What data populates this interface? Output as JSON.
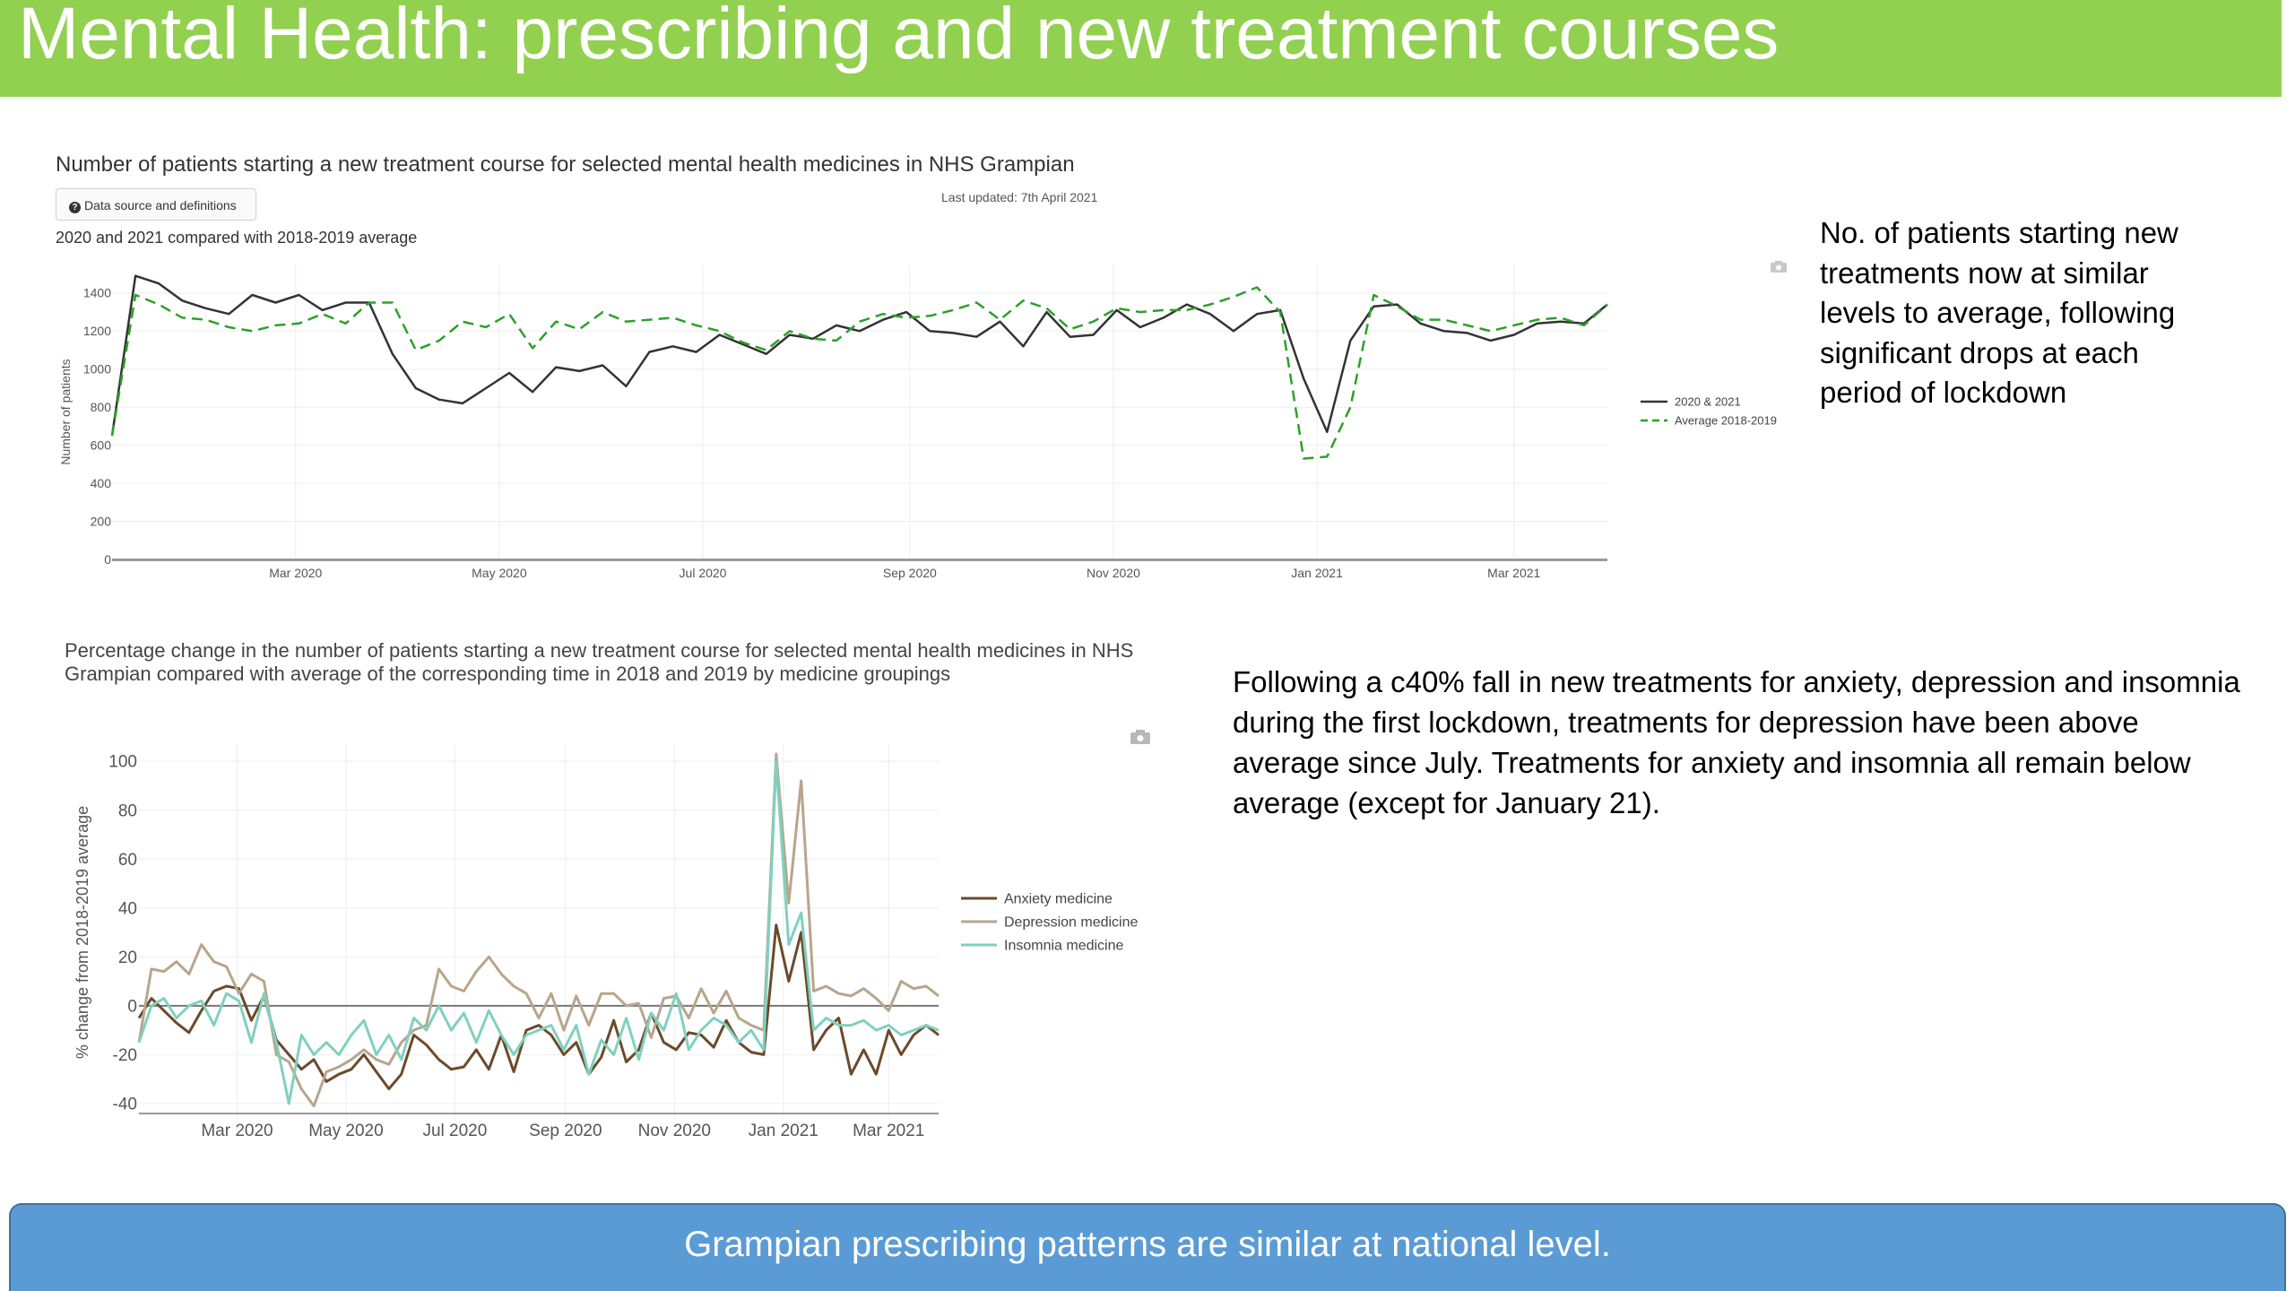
{
  "slide": {
    "title": "Mental Health: prescribing and new treatment courses",
    "note1": "No. of patients starting new treatments now at similar levels to average, following significant drops at each period of lockdown",
    "note2": "Following a c40% fall in new treatments for anxiety, depression and insomnia during the first lockdown, treatments for depression have been above average since July.  Treatments for anxiety and insomnia all remain below average (except for January 21).",
    "footer": "Grampian prescribing patterns are similar at national level.",
    "data_source_button": "Data source and definitions",
    "last_updated": "Last updated: 7th April 2021",
    "colors": {
      "title_bar": "#92d050",
      "footer": "#5b9bd5"
    }
  },
  "chart_data": [
    {
      "type": "line",
      "title": "Number of patients starting a new treatment course for selected mental health medicines in NHS Grampian",
      "subtitle": "2020 and 2021 compared with 2018-2019 average",
      "ylabel": "Number of patients",
      "ylim": [
        0,
        1550
      ],
      "yticks": [
        0,
        200,
        400,
        600,
        800,
        1000,
        1200,
        1400
      ],
      "xticks": [
        "Mar 2020",
        "May 2020",
        "Jul 2020",
        "Sep 2020",
        "Nov 2020",
        "Jan 2021",
        "Mar 2021"
      ],
      "x_start": "2020-01-06",
      "x_step_days": 7,
      "legend_position": "right",
      "series": [
        {
          "name": "2020 & 2021",
          "color": "#333333",
          "dash": "solid",
          "values": [
            650,
            1490,
            1450,
            1360,
            1320,
            1290,
            1390,
            1350,
            1390,
            1310,
            1350,
            1350,
            1080,
            900,
            840,
            820,
            900,
            980,
            880,
            1010,
            990,
            1020,
            910,
            1090,
            1120,
            1090,
            1180,
            1130,
            1080,
            1180,
            1160,
            1230,
            1200,
            1260,
            1300,
            1200,
            1190,
            1170,
            1250,
            1120,
            1300,
            1170,
            1180,
            1310,
            1220,
            1270,
            1340,
            1290,
            1200,
            1290,
            1310,
            950,
            670,
            1150,
            1330,
            1340,
            1240,
            1200,
            1190,
            1150,
            1180,
            1240,
            1250,
            1240,
            1340
          ]
        },
        {
          "name": "Average 2018-2019",
          "color": "#2ca02c",
          "dash": "dashed",
          "values": [
            650,
            1390,
            1340,
            1270,
            1260,
            1220,
            1200,
            1230,
            1240,
            1290,
            1240,
            1350,
            1350,
            1100,
            1150,
            1250,
            1220,
            1290,
            1110,
            1250,
            1210,
            1300,
            1250,
            1260,
            1270,
            1230,
            1200,
            1140,
            1100,
            1200,
            1160,
            1150,
            1250,
            1290,
            1270,
            1280,
            1310,
            1350,
            1260,
            1360,
            1320,
            1210,
            1250,
            1320,
            1300,
            1310,
            1310,
            1340,
            1380,
            1430,
            1300,
            530,
            540,
            800,
            1390,
            1330,
            1260,
            1260,
            1230,
            1200,
            1230,
            1260,
            1270,
            1230,
            1340
          ]
        }
      ]
    },
    {
      "type": "line",
      "title": "Percentage change in the number of patients starting a new treatment course for selected mental health medicines in NHS Grampian compared with average of the corresponding time in 2018 and 2019 by medicine groupings",
      "ylabel": "% change from 2018-2019 average",
      "ylim": [
        -47,
        107
      ],
      "yticks": [
        -40,
        -20,
        0,
        20,
        40,
        60,
        80,
        100
      ],
      "xticks": [
        "Mar 2020",
        "May 2020",
        "Jul 2020",
        "Sep 2020",
        "Nov 2020",
        "Jan 2021",
        "Mar 2021"
      ],
      "x_start": "2020-01-06",
      "x_step_days": 7,
      "legend_position": "right",
      "series": [
        {
          "name": "Anxiety medicine",
          "color": "#6b4a2b",
          "values": [
            -5,
            3,
            -2,
            -7,
            -11,
            -2,
            6,
            8,
            7,
            -6,
            4,
            -14,
            -20,
            -26,
            -22,
            -31,
            -28,
            -26,
            -20,
            -27,
            -34,
            -28,
            -12,
            -16,
            -22,
            -26,
            -25,
            -18,
            -26,
            -12,
            -27,
            -10,
            -8,
            -12,
            -20,
            -15,
            -28,
            -21,
            -6,
            -23,
            -18,
            -3,
            -15,
            -18,
            -11,
            -12,
            -17,
            -6,
            -15,
            -19,
            -20,
            33,
            10,
            30,
            -18,
            -10,
            -5,
            -28,
            -18,
            -28,
            -10,
            -20,
            -12,
            -8,
            -12
          ]
        },
        {
          "name": "Depression medicine",
          "color": "#b8a58c",
          "values": [
            -15,
            15,
            14,
            18,
            13,
            25,
            18,
            16,
            5,
            13,
            10,
            -20,
            -23,
            -34,
            -41,
            -27,
            -25,
            -22,
            -18,
            -22,
            -24,
            -15,
            -10,
            -8,
            15,
            8,
            6,
            14,
            20,
            13,
            8,
            5,
            -5,
            5,
            -10,
            4,
            -8,
            5,
            5,
            0,
            1,
            -13,
            3,
            4,
            -5,
            7,
            -3,
            6,
            -5,
            -8,
            -10,
            103,
            42,
            92,
            6,
            8,
            5,
            4,
            7,
            3,
            -2,
            10,
            7,
            8,
            4
          ]
        },
        {
          "name": "Insomnia medicine",
          "color": "#7fd1bf",
          "values": [
            -15,
            0,
            3,
            -5,
            0,
            2,
            -8,
            5,
            2,
            -15,
            5,
            -15,
            -40,
            -12,
            -20,
            -15,
            -20,
            -12,
            -6,
            -20,
            -12,
            -22,
            -5,
            -10,
            0,
            -10,
            -3,
            -15,
            -2,
            -12,
            -20,
            -12,
            -10,
            -8,
            -18,
            -8,
            -28,
            -14,
            -20,
            -5,
            -22,
            -3,
            -10,
            5,
            -18,
            -10,
            -5,
            -8,
            -15,
            -10,
            -18,
            100,
            25,
            38,
            -10,
            -5,
            -8,
            -8,
            -6,
            -10,
            -8,
            -12,
            -10,
            -8,
            -10
          ]
        }
      ]
    }
  ]
}
